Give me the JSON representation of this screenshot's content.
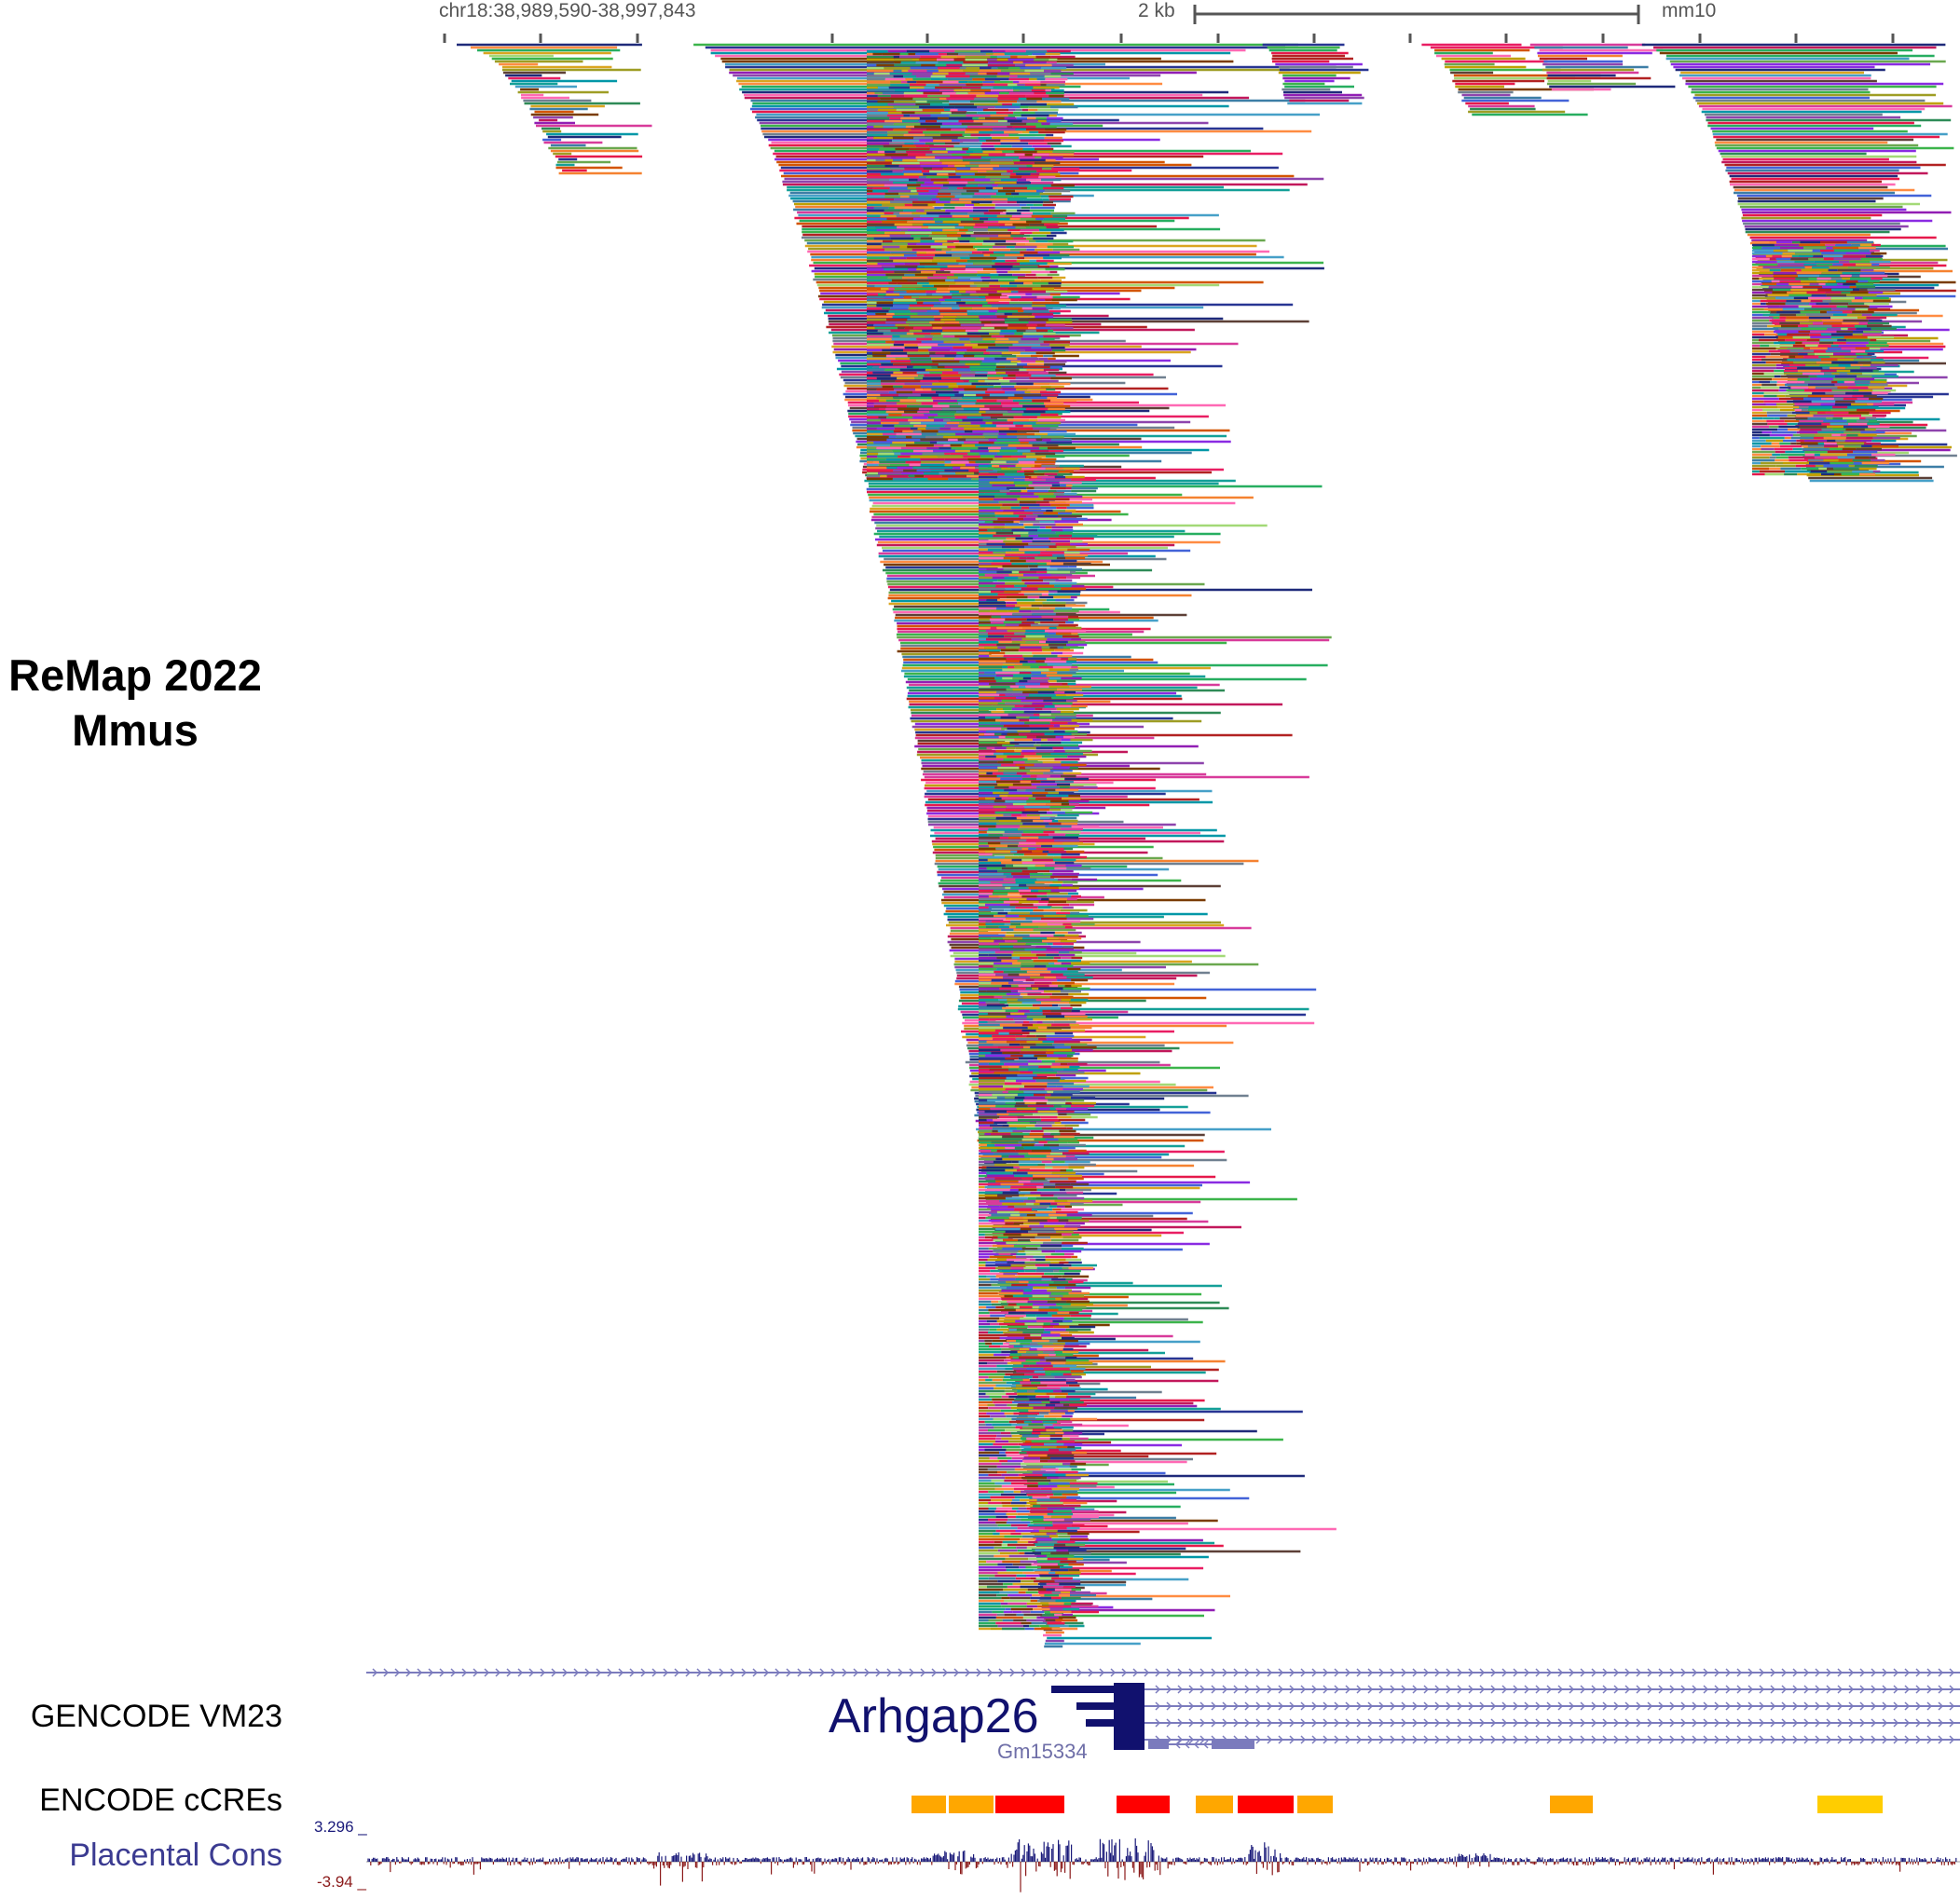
{
  "ruler": {
    "position": "chr18:38,989,590-38,997,843",
    "scale_label": "2 kb",
    "assembly": "mm10"
  },
  "tracks": {
    "remap": {
      "label_line1": "ReMap 2022",
      "label_line2": "Mmus"
    },
    "gencode": {
      "label": "GENCODE VM23",
      "gene_primary": "Arhgap26",
      "gene_secondary": "Gm15334"
    },
    "encode": {
      "label": "ENCODE cCREs"
    },
    "cons": {
      "label": "Placental Cons",
      "max": "3.296",
      "min": "-3.94"
    }
  },
  "colors": {
    "gene": "#11116e",
    "gene_light": "#7b7bbd",
    "ccre_promoter": "#ff0000",
    "ccre_enhancer_proximal": "#ffa700",
    "ccre_enhancer_distal": "#ffcd00",
    "cons_pos": "#1a1a7a",
    "cons_neg": "#8b1a1a"
  },
  "encode_ccres": [
    {
      "type": "enhancer-proximal"
    },
    {
      "type": "enhancer-proximal"
    },
    {
      "type": "promoter"
    },
    {
      "type": "promoter"
    },
    {
      "type": "enhancer-proximal"
    },
    {
      "type": "promoter"
    },
    {
      "type": "enhancer-proximal"
    },
    {
      "type": "enhancer-proximal"
    },
    {
      "type": "enhancer-distal"
    }
  ]
}
